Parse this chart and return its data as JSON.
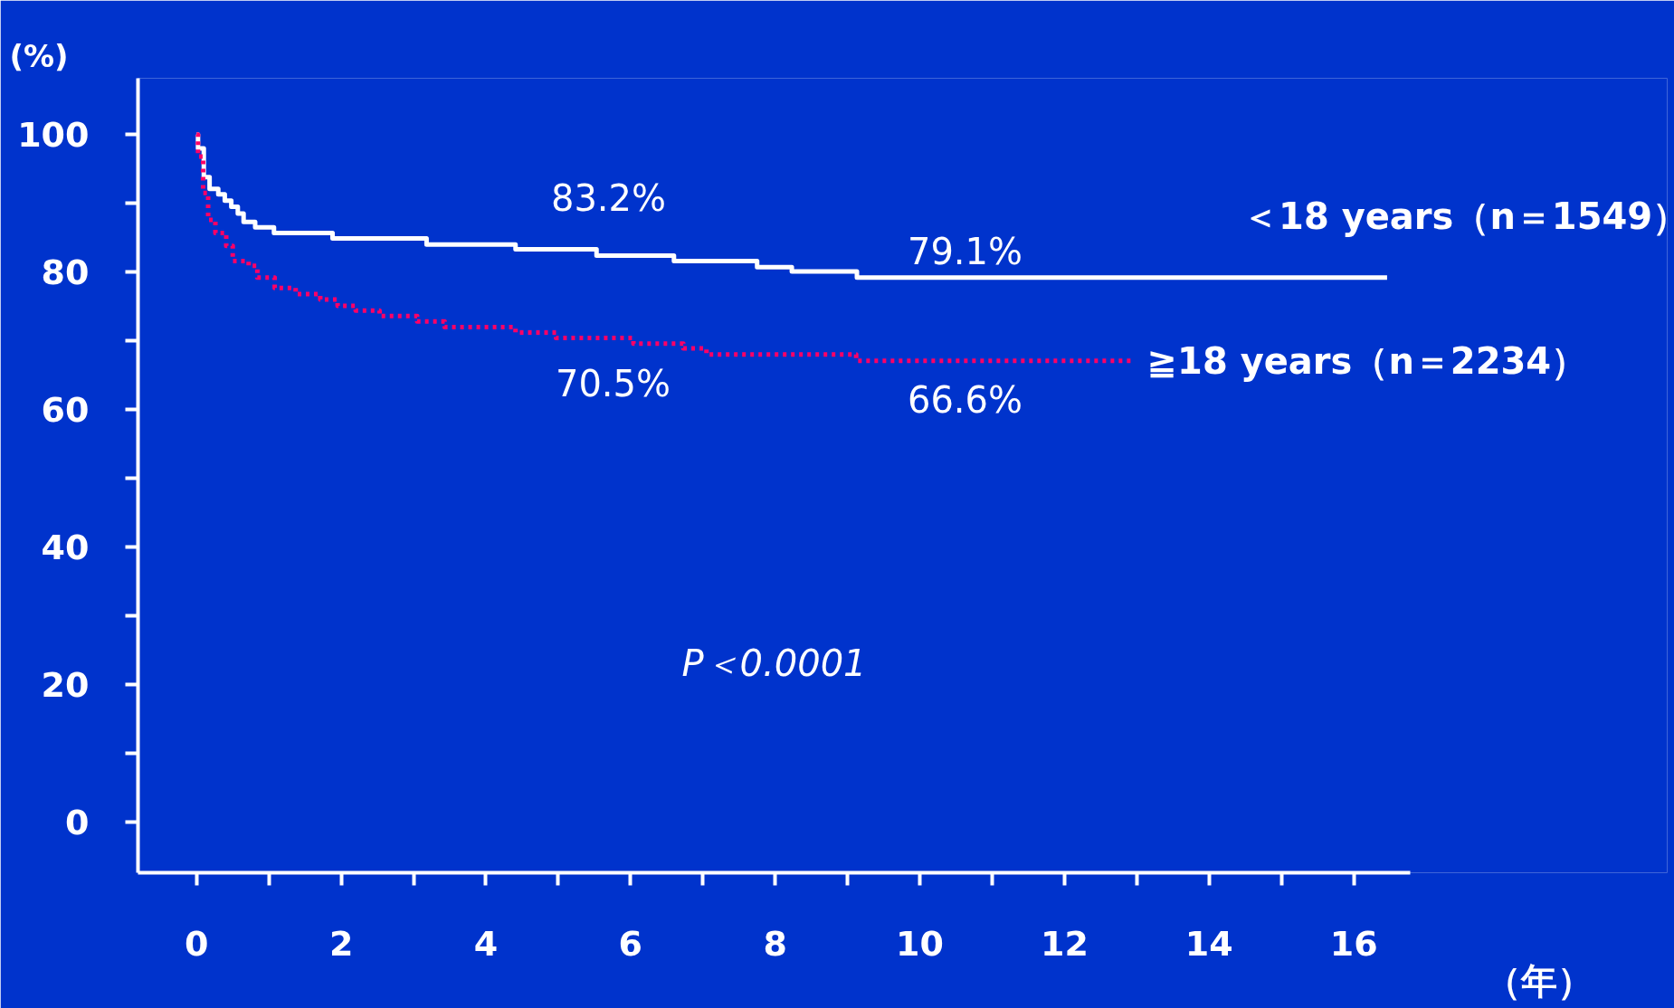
{
  "chart_data": {
    "type": "step",
    "xlabel": "（年）",
    "ylabel": "(%)",
    "series": [
      {
        "name": "＜18 years（n＝1549）",
        "color": "#ffffff",
        "line_style": "solid",
        "x": [
          0,
          0.02,
          0.1,
          0.18,
          0.3,
          0.39,
          0.48,
          0.57,
          0.65,
          0.81,
          1.07,
          1.88,
          3.18,
          4.41,
          5.53,
          6.6,
          7.75,
          8.23,
          9.13,
          16.46
        ],
        "values": [
          100,
          98.0,
          93.8,
          92.1,
          91.3,
          90.4,
          89.5,
          88.5,
          87.3,
          86.5,
          85.7,
          84.9,
          84.0,
          83.3,
          82.4,
          81.6,
          80.7,
          80.1,
          79.2,
          79.2
        ]
      },
      {
        "name": "≧18 years（n＝2234）",
        "color": "#ff0066",
        "line_style": "dotted",
        "x": [
          0,
          0.02,
          0.09,
          0.16,
          0.26,
          0.41,
          0.5,
          0.72,
          0.84,
          1.08,
          1.37,
          1.71,
          1.95,
          2.2,
          2.53,
          3.05,
          3.43,
          4.41,
          4.97,
          6.04,
          6.73,
          7.05,
          9.12,
          12.94
        ],
        "values": [
          100,
          96.8,
          91.5,
          87.6,
          85.7,
          83.8,
          81.6,
          80.9,
          79.2,
          77.7,
          76.8,
          76.0,
          75.1,
          74.4,
          73.6,
          72.8,
          72.0,
          71.2,
          70.4,
          69.6,
          68.9,
          68.0,
          67.1,
          67.1
        ]
      }
    ],
    "xlim": [
      -0.81,
      16.78
    ],
    "xticks": [
      0,
      {
        "value": 1,
        "label": null
      },
      2,
      {
        "value": 3,
        "label": null
      },
      4,
      {
        "value": 5,
        "label": null
      },
      6,
      {
        "value": 7,
        "label": null
      },
      8,
      {
        "value": 9,
        "label": null
      },
      10,
      {
        "value": 11,
        "label": null
      },
      12,
      {
        "value": 13,
        "label": null
      },
      14,
      {
        "value": 15,
        "label": null
      },
      16
    ],
    "ylim": [
      -7.4,
      108.2
    ],
    "yticks": [
      0,
      {
        "value": 10,
        "label": null
      },
      20,
      {
        "value": 30,
        "label": null
      },
      40,
      {
        "value": 50,
        "label": null
      },
      60,
      {
        "value": 70,
        "label": null
      },
      80,
      {
        "value": 90,
        "label": null
      },
      100
    ],
    "grid": false,
    "annotations": [
      "83.2%",
      "70.5%",
      "79.1%",
      "66.6%",
      "P＜0.0001"
    ]
  }
}
